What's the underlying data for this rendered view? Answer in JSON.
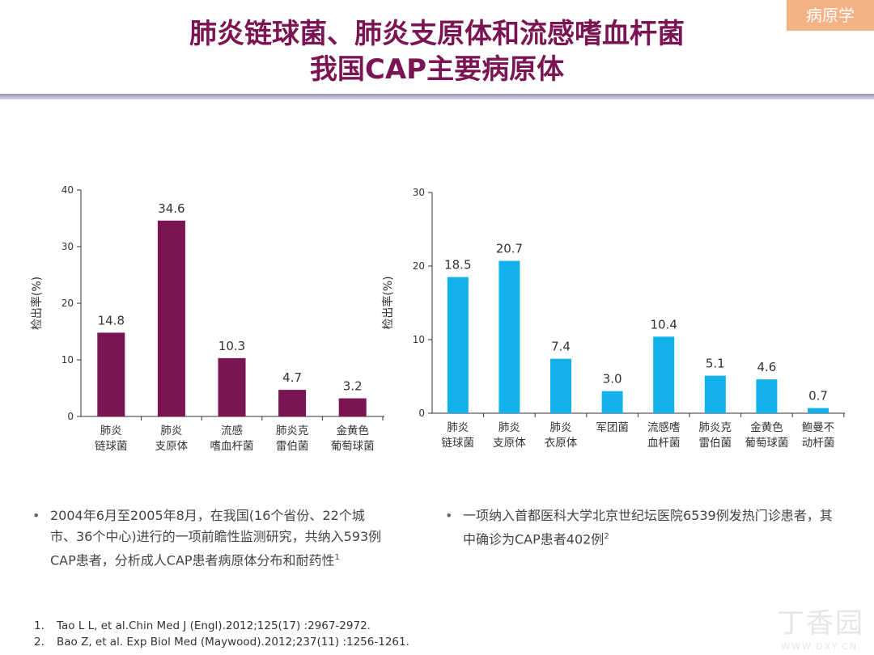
{
  "header": {
    "title_line1": "肺炎链球菌、肺炎支原体和流感嗜血杆菌",
    "title_line2": "我国CAP主要病原体",
    "tag": "病原学"
  },
  "colors": {
    "title": "#7a1452",
    "left_bar": "#7a1452",
    "right_bar": "#12b1ec",
    "tag": "#f4b183"
  },
  "chart_data": [
    {
      "type": "bar",
      "ylabel": "检出率(%)",
      "ylim": [
        0,
        40
      ],
      "yticks": [
        0,
        10,
        20,
        30,
        40
      ],
      "categories": [
        [
          "肺炎",
          "链球菌"
        ],
        [
          "肺炎",
          "支原体"
        ],
        [
          "流感",
          "嗜血杆菌"
        ],
        [
          "肺炎克",
          "雷伯菌"
        ],
        [
          "金黄色",
          "葡萄球菌"
        ]
      ],
      "values": [
        14.8,
        34.6,
        10.3,
        4.7,
        3.2
      ],
      "labels": [
        "14.8",
        "34.6",
        "10.3",
        "4.7",
        "3.2"
      ],
      "color": "#7a1452"
    },
    {
      "type": "bar",
      "ylabel": "检出率(%)",
      "ylim": [
        0,
        30
      ],
      "yticks": [
        0,
        10,
        20,
        30
      ],
      "categories": [
        [
          "肺炎",
          "链球菌"
        ],
        [
          "肺炎",
          "支原体"
        ],
        [
          "肺炎",
          "衣原体"
        ],
        [
          "军团菌"
        ],
        [
          "流感嗜",
          "血杆菌"
        ],
        [
          "肺炎克",
          "雷伯菌"
        ],
        [
          "金黄色",
          "葡萄球菌"
        ],
        [
          "鲍曼不",
          "动杆菌"
        ]
      ],
      "values": [
        18.5,
        20.7,
        7.4,
        3.0,
        10.4,
        5.1,
        4.6,
        0.7
      ],
      "labels": [
        "18.5",
        "20.7",
        "7.4",
        "3.0",
        "10.4",
        "5.1",
        "4.6",
        "0.7"
      ],
      "color": "#12b1ec"
    }
  ],
  "notes": {
    "left_bullet": "•",
    "left_text": "2004年6月至2005年8月，在我国(16个省份、22个城市、36个中心)进行的一项前瞻性监测研究，共纳入593例CAP患者，分析成人CAP患者病原体分布和耐药性",
    "left_sup": "1",
    "right_bullet": "•",
    "right_text": "一项纳入首都医科大学北京世纪坛医院6539例发热门诊患者，其中确诊为CAP患者402例",
    "right_sup": "2"
  },
  "references": [
    {
      "num": "1.",
      "text": "Tao L L, et al.Chin Med J (Engl).2012;125(17) :2967-2972."
    },
    {
      "num": "2.",
      "text": "Bao Z, et al. Exp Biol Med (Maywood).2012;237(11) :1256-1261."
    }
  ],
  "watermark": {
    "brand": "丁香园",
    "url": "WWW.DXY.CN"
  }
}
